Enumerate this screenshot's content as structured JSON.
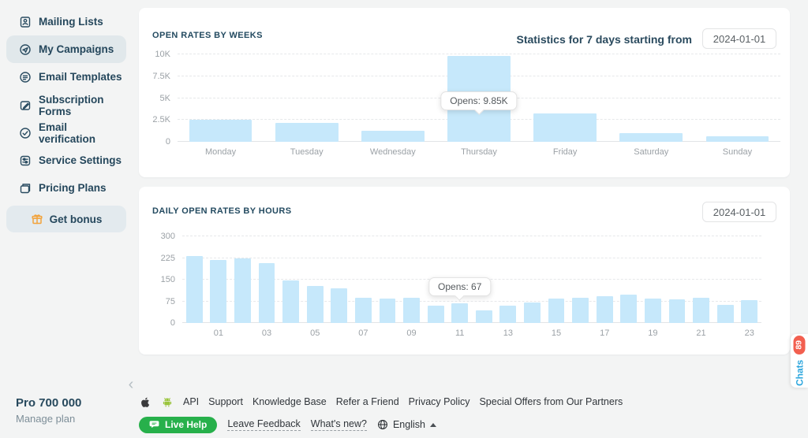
{
  "sidebar": {
    "items": [
      {
        "label": "Mailing Lists"
      },
      {
        "label": "My Campaigns"
      },
      {
        "label": "Email Templates"
      },
      {
        "label": "Subscription Forms"
      },
      {
        "label": "Email verification"
      },
      {
        "label": "Service Settings"
      },
      {
        "label": "Pricing Plans"
      }
    ],
    "bonus_label": "Get bonus",
    "plan_name": "Pro 700 000",
    "plan_manage": "Manage plan"
  },
  "cards": [
    {
      "title": "OPEN RATES BY WEEKS",
      "stats_label": "Statistics for 7 days starting from",
      "date_value": "2024-01-01"
    },
    {
      "title": "DAILY OPEN RATES BY HOURS",
      "date_value": "2024-01-01"
    }
  ],
  "chart_data": [
    {
      "type": "bar",
      "title": "OPEN RATES BY WEEKS",
      "categories": [
        "Monday",
        "Tuesday",
        "Wednesday",
        "Thursday",
        "Friday",
        "Saturday",
        "Sunday"
      ],
      "values": [
        2500,
        2150,
        1300,
        9850,
        3250,
        1000,
        650
      ],
      "tick_labels": [
        "Monday",
        "Tuesday",
        "Wednesday",
        "Thursday",
        "Friday",
        "Saturday",
        "Sunday"
      ],
      "xlabel": "",
      "ylabel": "",
      "ylim": [
        0,
        10000
      ],
      "yticks": [
        0,
        2500,
        5000,
        7500,
        10000
      ],
      "ytick_labels": [
        "0",
        "2.5K",
        "5K",
        "7.5K",
        "10K"
      ],
      "grid": true,
      "legend": false,
      "bar_color": "#c6e8fb",
      "tooltip": {
        "index": 3,
        "text": "Opens: 9.85K"
      }
    },
    {
      "type": "bar",
      "title": "DAILY OPEN RATES BY HOURS",
      "categories": [
        "00",
        "01",
        "02",
        "03",
        "04",
        "05",
        "06",
        "07",
        "08",
        "09",
        "10",
        "11",
        "12",
        "13",
        "14",
        "15",
        "16",
        "17",
        "18",
        "19",
        "20",
        "21",
        "22",
        "23"
      ],
      "values": [
        233,
        218,
        224,
        206,
        146,
        129,
        119,
        86,
        85,
        88,
        59,
        67,
        43,
        59,
        72,
        85,
        88,
        93,
        97,
        84,
        82,
        86,
        62,
        78
      ],
      "tick_labels": [
        "",
        "01",
        "",
        "03",
        "",
        "05",
        "",
        "07",
        "",
        "09",
        "",
        "11",
        "",
        "13",
        "",
        "15",
        "",
        "17",
        "",
        "19",
        "",
        "21",
        "",
        "23"
      ],
      "xlabel": "",
      "ylabel": "",
      "ylim": [
        0,
        300
      ],
      "yticks": [
        0,
        75,
        150,
        225,
        300
      ],
      "ytick_labels": [
        "0",
        "75",
        "150",
        "225",
        "300"
      ],
      "grid": true,
      "legend": false,
      "bar_color": "#c6e8fb",
      "tooltip": {
        "index": 11,
        "text": "Opens: 67"
      }
    }
  ],
  "footer": {
    "links": [
      "API",
      "Support",
      "Knowledge Base",
      "Refer a Friend",
      "Privacy Policy",
      "Special Offers from Our Partners"
    ],
    "live_help_label": "Live Help",
    "feedback_label": "Leave Feedback",
    "whats_new_label": "What's new?",
    "language_label": "English"
  },
  "chats_tab": {
    "label": "Chats",
    "badge": "89"
  },
  "colors": {
    "bar_fill": "#c6e8fb",
    "accent_green": "#27b04b",
    "badge_red": "#f25f4f",
    "chats_blue": "#2aa5dd",
    "bonus_orange": "#f2a33c",
    "active_item_bg": "#e1e8eb"
  }
}
